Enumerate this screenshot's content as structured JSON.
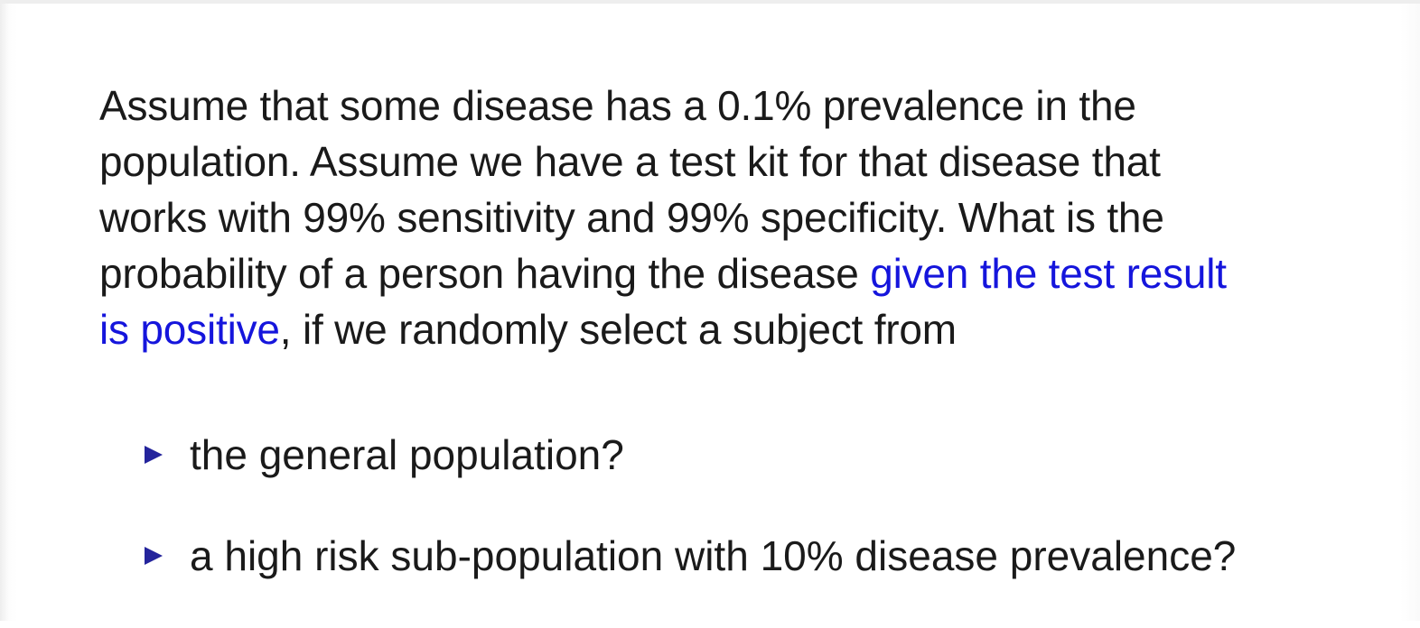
{
  "question": {
    "lines": [
      "Assume that some disease has a 0.1% prevalence in the",
      "population. Assume we have a test kit for that disease that",
      "works with 99% sensitivity and 99% specificity. What is the"
    ],
    "line4_plain": "probability of a person having the disease ",
    "line4_highlight": "given the test result",
    "line5_highlight": "is positive",
    "line5_plain": ", if we randomly select a subject from"
  },
  "bullets": [
    {
      "text": "the general population?",
      "icon": "triangle-bullet-icon"
    },
    {
      "text": "a high risk sub-population with 10% disease prevalence?",
      "icon": "triangle-bullet-icon"
    }
  ],
  "colors": {
    "text": "#1a1a1a",
    "highlight": "#1515dc",
    "bullet_marker": "#24249c"
  }
}
